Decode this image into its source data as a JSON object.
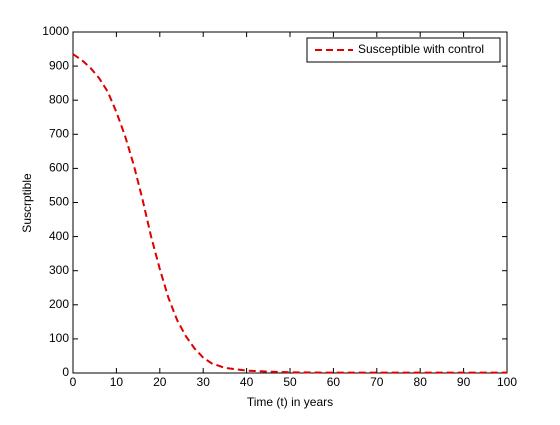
{
  "chart_data": {
    "type": "line",
    "xlabel": "Time (t) in years",
    "ylabel": "Suscrptible",
    "x": [
      0,
      2,
      4,
      6,
      8,
      10,
      12,
      14,
      16,
      18,
      20,
      22,
      24,
      26,
      28,
      30,
      32,
      35,
      40,
      45,
      50,
      60,
      70,
      80,
      90,
      100
    ],
    "series": [
      {
        "name": "Susceptible with control",
        "color": "#dd0000",
        "dashed": true,
        "values": [
          935,
          918,
          895,
          865,
          825,
          765,
          695,
          610,
          510,
          400,
          305,
          220,
          155,
          108,
          72,
          45,
          28,
          15,
          7,
          4,
          2,
          1,
          1,
          1,
          1,
          1
        ]
      }
    ],
    "xlim": [
      0,
      100
    ],
    "ylim": [
      0,
      1000
    ],
    "xticks": [
      0,
      10,
      20,
      30,
      40,
      50,
      60,
      70,
      80,
      90,
      100
    ],
    "yticks": [
      0,
      100,
      200,
      300,
      400,
      500,
      600,
      700,
      800,
      900,
      1000
    ],
    "legend": "northeast"
  }
}
